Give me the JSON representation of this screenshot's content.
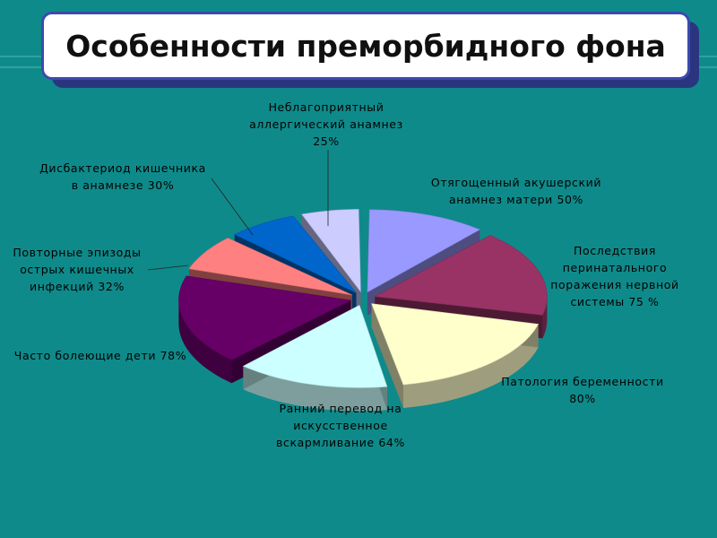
{
  "slide": {
    "title": "Особенности преморбидного фона"
  },
  "chart_data": {
    "type": "pie",
    "style": "3d-exploded",
    "categories": [
      "Отягощенный акушерский анамнез матери 50%",
      "Последствия перинатального поражения нервной системы 75 %",
      "Патология беременности 80%",
      "Ранний перевод на искусственное вскармливание 64%",
      "Часто болеющие дети 78%",
      "Повторные эпизоды острых кишечных инфекций 32%",
      "Дисбактериод кишечника в анамнезе 30%",
      "Неблагоприятный аллергический анамнез 25%"
    ],
    "values": [
      50,
      75,
      80,
      64,
      78,
      32,
      30,
      25
    ],
    "colors": [
      "#9999ff",
      "#993366",
      "#ffffcc",
      "#ccffff",
      "#660066",
      "#ff8080",
      "#0066cc",
      "#ccccff"
    ],
    "labels": [
      {
        "lines": [
          "Отягощенный акушерский",
          "анамнез матери 50%"
        ]
      },
      {
        "lines": [
          "Последствия",
          "перинатального",
          "поражения нервной",
          "системы 75 %"
        ]
      },
      {
        "lines": [
          "Патология беременности",
          "80%"
        ]
      },
      {
        "lines": [
          "Ранний перевод на",
          "искусственное",
          "вскармливание 64%"
        ]
      },
      {
        "lines": [
          "Часто болеющие дети 78%"
        ]
      },
      {
        "lines": [
          "Повторные эпизоды",
          "острых кишечных",
          "инфекций 32%"
        ]
      },
      {
        "lines": [
          "Дисбактериод кишечника",
          "в анамнезе 30%"
        ]
      },
      {
        "lines": [
          "Неблагоприятный",
          "аллергический анамнез",
          "25%"
        ]
      }
    ]
  }
}
